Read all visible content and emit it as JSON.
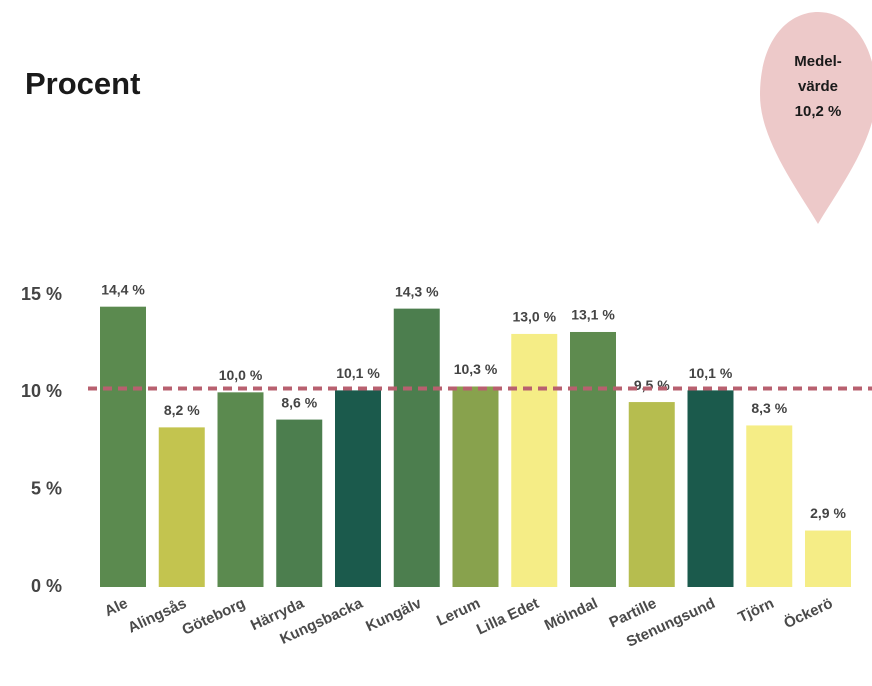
{
  "chart_data": {
    "type": "bar",
    "title": "Procent",
    "categories": [
      "Ale",
      "Alingsås",
      "Göteborg",
      "Härryda",
      "Kungsbacka",
      "Kungälv",
      "Lerum",
      "Lilla Edet",
      "Mölndal",
      "Partille",
      "Stenungsund",
      "Tjörn",
      "Öckerö"
    ],
    "values": [
      14.4,
      8.2,
      10.0,
      8.6,
      10.1,
      14.3,
      10.3,
      13.0,
      13.1,
      9.5,
      10.1,
      8.3,
      2.9
    ],
    "value_labels": [
      "14,4 %",
      "8,2 %",
      "10,0 %",
      "8,6 %",
      "10,1 %",
      "14,3 %",
      "10,3 %",
      "13,0 %",
      "13,1 %",
      "9,5 %",
      "10,1 %",
      "8,3 %",
      "2,9 %"
    ],
    "colors": [
      "#5b8a4f",
      "#c3c44f",
      "#5b8a4f",
      "#4c7e4e",
      "#1b5a4c",
      "#4c7e4e",
      "#88a24d",
      "#f5ed86",
      "#5e8b4f",
      "#b6bd4f",
      "#1b5a4c",
      "#f5ed86",
      "#f5ed86"
    ],
    "ylim": [
      0,
      15
    ],
    "yticks": [
      {
        "value": 0,
        "label": "0 %"
      },
      {
        "value": 5,
        "label": "5 %"
      },
      {
        "value": 10,
        "label": "10 %"
      },
      {
        "value": 15,
        "label": "15 %"
      }
    ],
    "grid": false,
    "mean": {
      "value": 10.2,
      "label_lines": [
        "Medel-",
        "värde"
      ],
      "label": "10,2 %",
      "color": "#b8606f",
      "pin_color": "#edc9c9"
    }
  }
}
